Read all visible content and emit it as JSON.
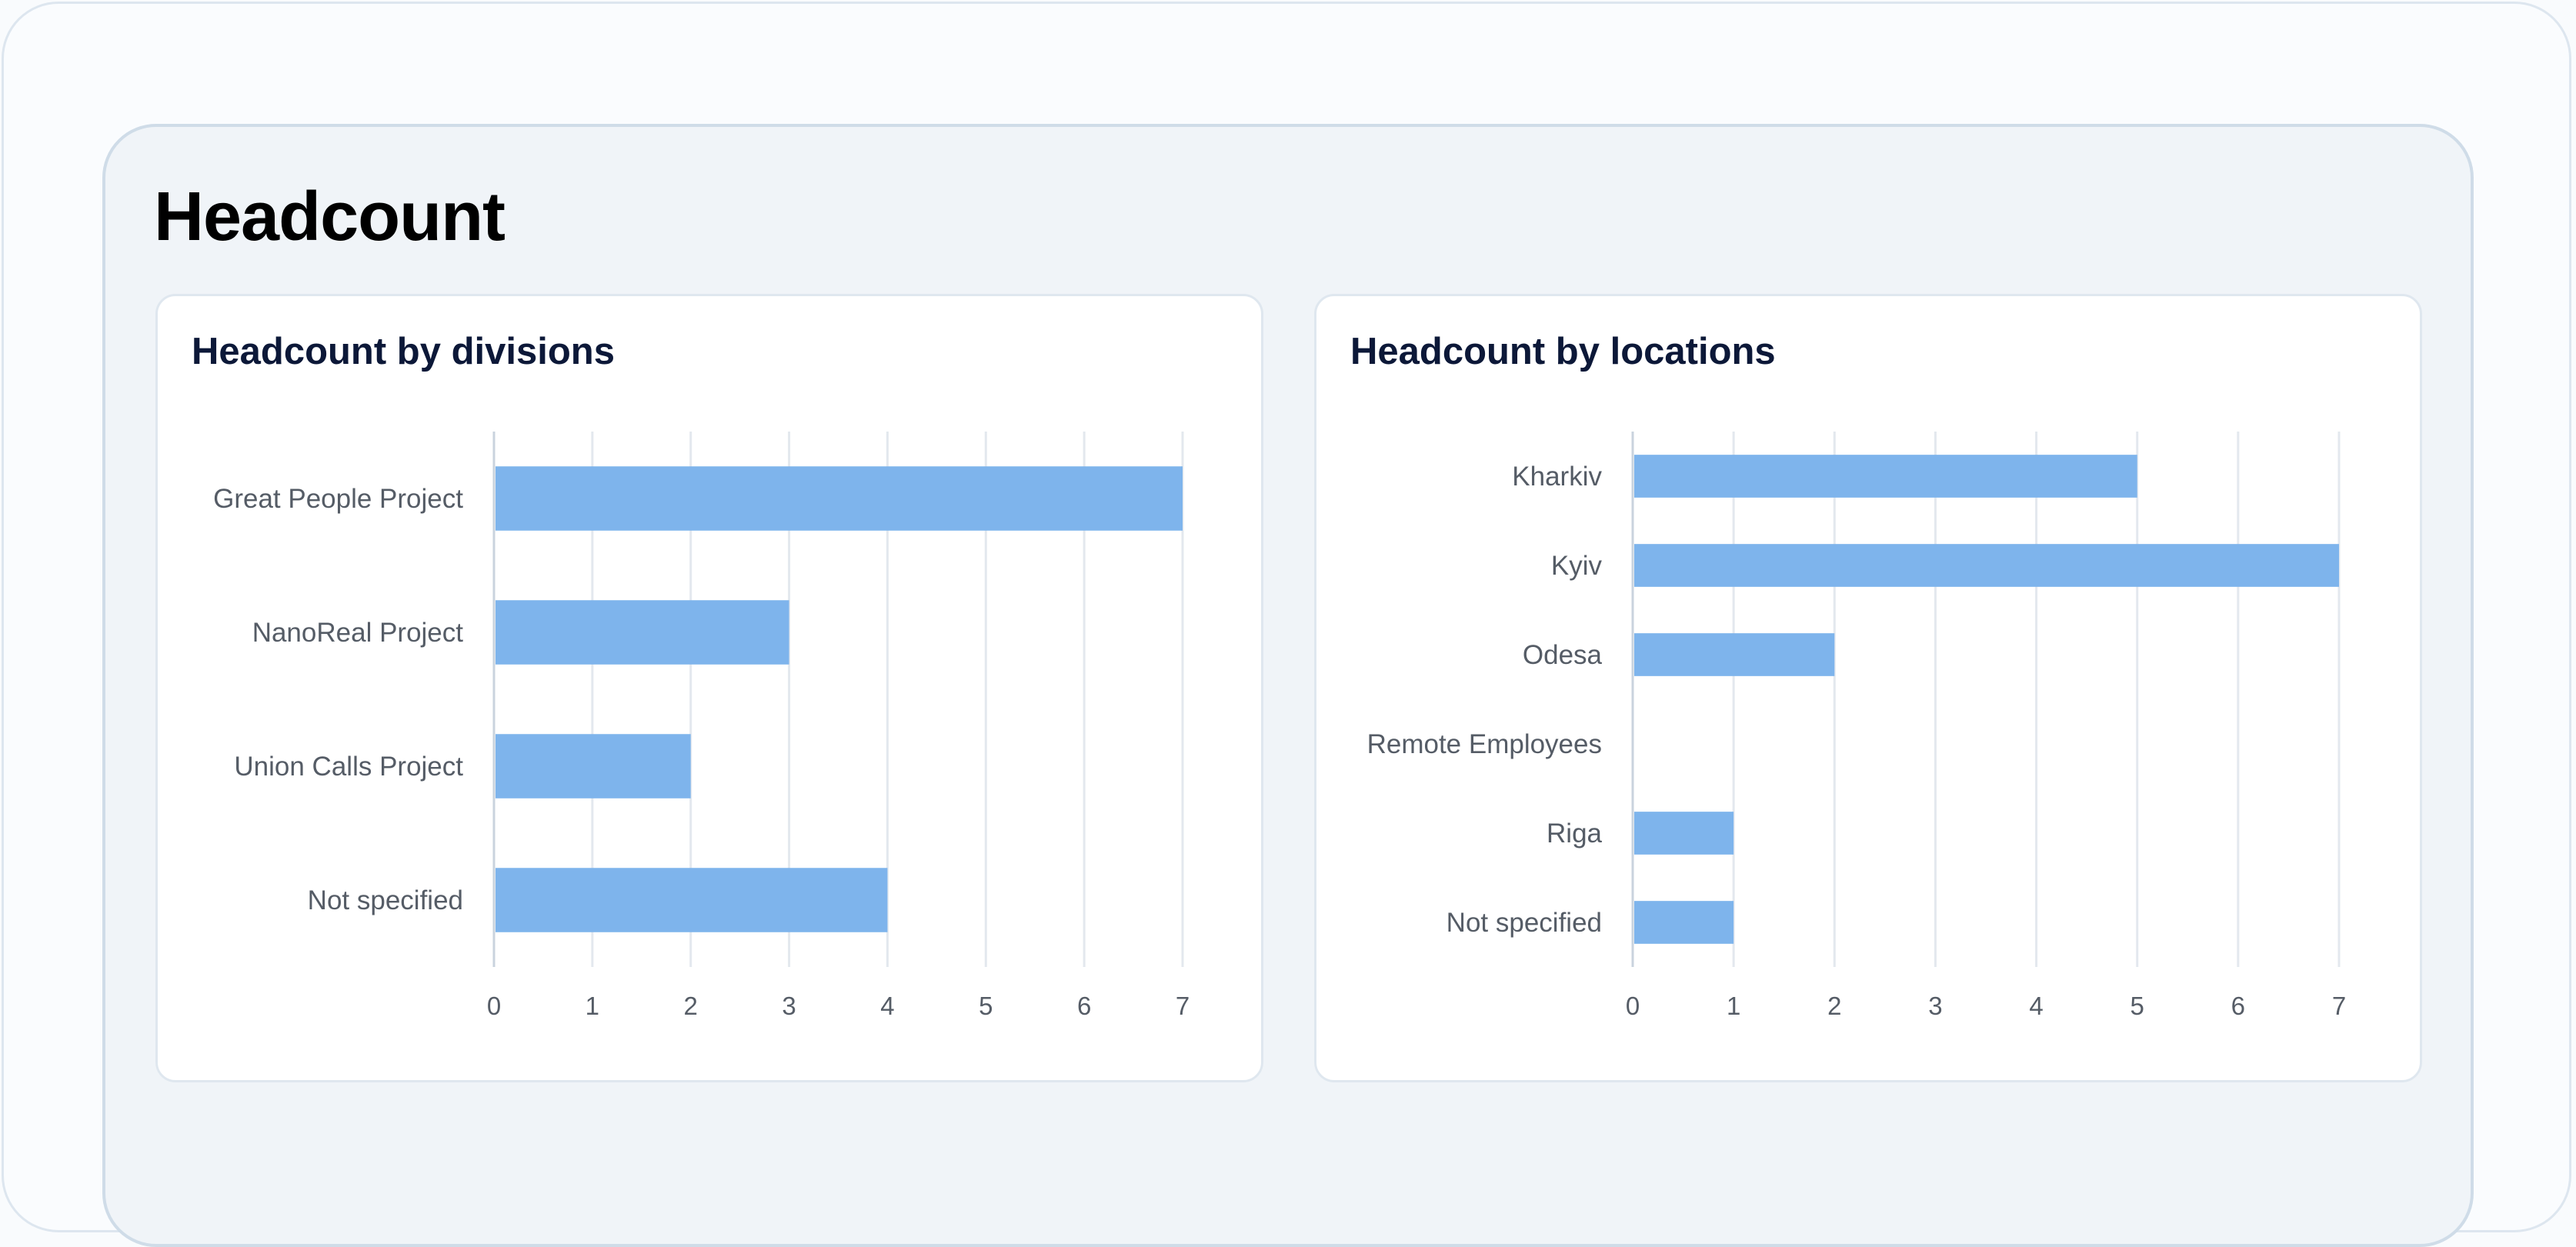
{
  "page": {
    "title": "Headcount"
  },
  "colors": {
    "bar": "#7eb4ec",
    "grid": "#e3e8ee",
    "axis": "#c9d3de",
    "label": "#555c66",
    "card_title": "#0c1838"
  },
  "chart_data": [
    {
      "type": "bar",
      "orientation": "horizontal",
      "title": "Headcount by divisions",
      "categories": [
        "Great People Project",
        "NanoReal Project",
        "Union Calls Project",
        "Not specified"
      ],
      "values": [
        7,
        3,
        2,
        4
      ],
      "xticks": [
        "0",
        "1",
        "2",
        "3",
        "4",
        "5",
        "6",
        "7"
      ],
      "xlim": [
        0,
        7
      ],
      "grid": true,
      "legend": "none"
    },
    {
      "type": "bar",
      "orientation": "horizontal",
      "title": "Headcount by locations",
      "categories": [
        "Kharkiv",
        "Kyiv",
        "Odesa",
        "Remote Employees",
        "Riga",
        "Not specified"
      ],
      "values": [
        5,
        7,
        2,
        0,
        1,
        1
      ],
      "xticks": [
        "0",
        "1",
        "2",
        "3",
        "4",
        "5",
        "6",
        "7"
      ],
      "xlim": [
        0,
        7
      ],
      "grid": true,
      "legend": "none"
    }
  ]
}
